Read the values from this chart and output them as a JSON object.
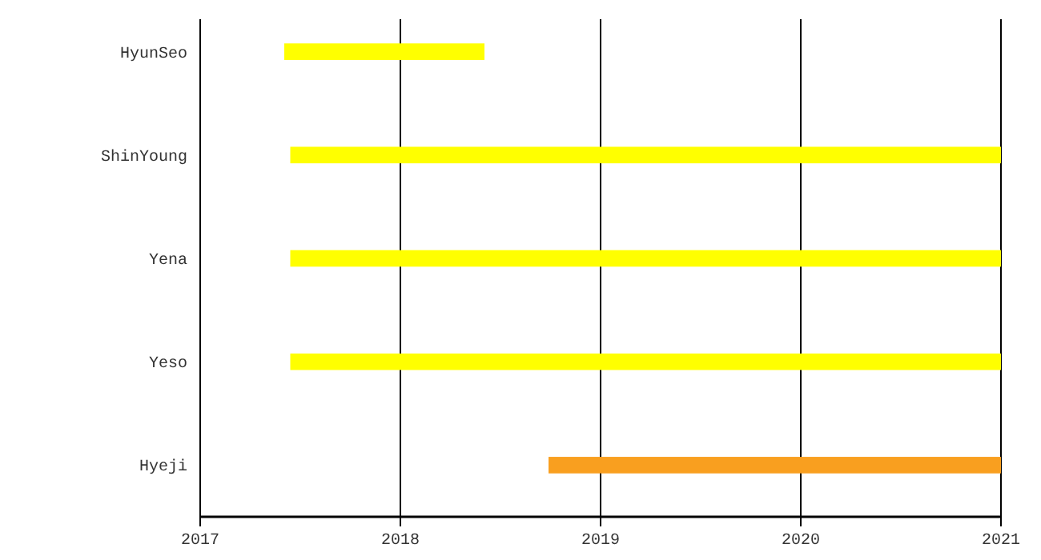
{
  "chart_data": {
    "type": "bar",
    "orientation": "horizontal",
    "categories": [
      "HyunSeo",
      "ShinYoung",
      "Yena",
      "Yeso",
      "Hyeji"
    ],
    "base": [
      2017.42,
      2017.45,
      2017.45,
      2017.45,
      2018.74
    ],
    "values": [
      1.0,
      3.55,
      3.55,
      3.55,
      2.26
    ],
    "colors": [
      "#ffff00",
      "#ffff00",
      "#ffff00",
      "#ffff00",
      "#f99f1f"
    ],
    "xlim": [
      2017,
      2021
    ],
    "xticks": [
      2017,
      2018,
      2019,
      2020,
      2021
    ],
    "grid": "x"
  }
}
